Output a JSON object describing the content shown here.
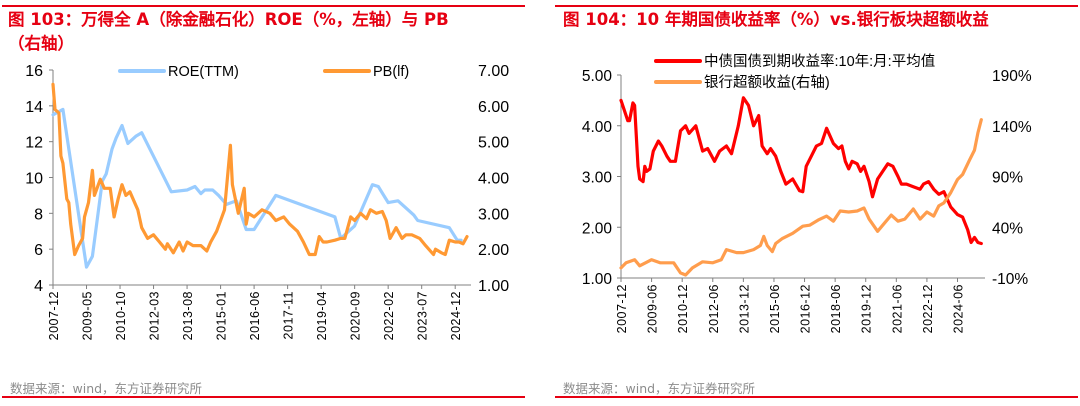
{
  "left": {
    "title": "图 103：万得全 A（除金融石化）ROE（%，左轴）与 PB（右轴）",
    "title_line1": "图 103：万得全 A（除金融石化）ROE（%，左轴）与 PB",
    "title_line2": "（右轴）",
    "source": "数据来源：wind，东方证券研究所"
  },
  "right": {
    "title": "图 104：10 年期国债收益率（%）vs.银行板块超额收益",
    "source": "数据来源：wind，东方证券研究所"
  },
  "colors": {
    "accent": "#e60012",
    "roe": "#99ccff",
    "pb": "#ff9933",
    "yield": "#ff0000",
    "excess": "#ff9d4d"
  },
  "chart_data": [
    {
      "type": "line",
      "title": "图 103：万得全 A（除金融石化）ROE（%，左轴）与 PB（右轴）",
      "x_ticks": [
        "2007-12",
        "2009-05",
        "2010-10",
        "2012-03",
        "2013-08",
        "2015-01",
        "2016-06",
        "2017-11",
        "2019-04",
        "2020-09",
        "2022-02",
        "2023-07",
        "2024-12"
      ],
      "ylim_left": [
        4,
        16
      ],
      "yticks_left": [
        "4",
        "6",
        "8",
        "10",
        "12",
        "14",
        "16"
      ],
      "ylim_right": [
        1,
        7
      ],
      "yticks_right": [
        "1.00",
        "2.00",
        "3.00",
        "4.00",
        "5.00",
        "6.00",
        "7.00"
      ],
      "legend": "top",
      "grid": false,
      "series": [
        {
          "name": "ROE(TTM)",
          "axis": "left",
          "color": "#99ccff",
          "x": [
            "2007-12",
            "2008-05",
            "2009-05",
            "2009-08",
            "2010-01",
            "2010-03",
            "2010-06",
            "2010-08",
            "2010-11",
            "2011-02",
            "2011-06",
            "2011-09",
            "2012-12",
            "2013-08",
            "2013-12",
            "2014-03",
            "2014-05",
            "2014-09",
            "2014-12",
            "2015-04",
            "2015-09",
            "2016-02",
            "2016-06",
            "2017-05",
            "2019-11",
            "2020-02",
            "2020-09",
            "2021-06",
            "2021-09",
            "2022-02",
            "2022-07",
            "2023-03",
            "2023-05",
            "2024-09",
            "2025-01",
            "2025-03"
          ],
          "y": [
            13.5,
            13.8,
            5.0,
            5.6,
            9.8,
            10.2,
            11.6,
            12.2,
            12.9,
            11.9,
            12.3,
            12.5,
            9.2,
            9.3,
            9.5,
            9.1,
            9.3,
            9.3,
            9.0,
            8.5,
            8.7,
            7.1,
            7.1,
            9.0,
            7.8,
            6.6,
            7.3,
            9.6,
            9.5,
            8.6,
            8.7,
            7.9,
            7.6,
            7.2,
            6.5,
            6.5
          ]
        },
        {
          "name": "PB(lf)",
          "axis": "right",
          "color": "#ff9933",
          "x": [
            "2007-12",
            "2008-01",
            "2008-03",
            "2008-04",
            "2008-05",
            "2008-07",
            "2008-08",
            "2008-09",
            "2008-11",
            "2009-01",
            "2009-03",
            "2009-04",
            "2009-06",
            "2009-08",
            "2009-09",
            "2009-12",
            "2010-02",
            "2010-05",
            "2010-07",
            "2010-09",
            "2010-11",
            "2011-01",
            "2011-03",
            "2011-07",
            "2011-09",
            "2011-12",
            "2012-03",
            "2012-06",
            "2012-09",
            "2012-10",
            "2013-01",
            "2013-04",
            "2013-06",
            "2013-08",
            "2013-11",
            "2014-03",
            "2014-06",
            "2014-08",
            "2014-11",
            "2015-01",
            "2015-03",
            "2015-06",
            "2015-07",
            "2015-10",
            "2016-01",
            "2016-02",
            "2016-03",
            "2016-06",
            "2016-10",
            "2017-02",
            "2017-05",
            "2017-09",
            "2017-12",
            "2018-04",
            "2018-07",
            "2018-10",
            "2019-01",
            "2019-03",
            "2019-05",
            "2019-07",
            "2019-11",
            "2020-02",
            "2020-04",
            "2020-07",
            "2020-09",
            "2020-12",
            "2021-03",
            "2021-05",
            "2021-08",
            "2021-11",
            "2022-01",
            "2022-03",
            "2022-06",
            "2022-09",
            "2022-11",
            "2023-02",
            "2023-06",
            "2023-09",
            "2024-01",
            "2024-02",
            "2024-05",
            "2024-07",
            "2024-09",
            "2024-12",
            "2025-02",
            "2025-04",
            "2025-06"
          ],
          "y": [
            6.6,
            5.9,
            5.8,
            4.6,
            4.4,
            3.4,
            3.3,
            2.7,
            1.85,
            2.1,
            2.3,
            2.9,
            3.3,
            4.2,
            3.5,
            3.95,
            3.7,
            3.7,
            2.9,
            3.4,
            3.8,
            3.5,
            3.6,
            3.1,
            2.6,
            2.3,
            2.4,
            2.2,
            2.0,
            2.15,
            1.9,
            2.2,
            1.95,
            2.2,
            2.1,
            2.1,
            1.95,
            2.2,
            2.5,
            2.8,
            3.1,
            4.9,
            3.8,
            3.0,
            3.7,
            2.7,
            3.0,
            2.9,
            3.1,
            3.0,
            2.8,
            2.9,
            2.7,
            2.5,
            2.2,
            1.85,
            1.85,
            2.35,
            2.2,
            2.2,
            2.25,
            2.3,
            2.3,
            2.9,
            2.8,
            3.0,
            2.85,
            3.1,
            3.0,
            3.05,
            2.8,
            2.3,
            2.6,
            2.3,
            2.4,
            2.4,
            2.3,
            2.1,
            1.85,
            2.0,
            1.9,
            1.85,
            2.25,
            2.2,
            2.2,
            2.15,
            2.35
          ]
        }
      ]
    },
    {
      "type": "line",
      "title": "图 104：10 年期国债收益率（%）vs.银行板块超额收益",
      "x_ticks": [
        "2007-12",
        "2009-06",
        "2010-12",
        "2012-06",
        "2013-12",
        "2015-06",
        "2016-12",
        "2018-06",
        "2019-12",
        "2021-06",
        "2022-12",
        "2024-06"
      ],
      "ylim_left": [
        1,
        5
      ],
      "yticks_left": [
        "1.00",
        "2.00",
        "3.00",
        "4.00",
        "5.00"
      ],
      "ylim_right": [
        -10,
        190
      ],
      "yticks_right": [
        "-10%",
        "40%",
        "90%",
        "140%",
        "190%"
      ],
      "legend": "top",
      "grid": false,
      "series": [
        {
          "name": "中债国债到期收益率:10年:月:平均值",
          "axis": "left",
          "color": "#ff0000",
          "x": [
            "2007-12",
            "2008-02",
            "2008-04",
            "2008-05",
            "2008-07",
            "2008-08",
            "2008-10",
            "2008-11",
            "2009-01",
            "2009-02",
            "2009-03",
            "2009-05",
            "2009-07",
            "2009-10",
            "2009-12",
            "2010-03",
            "2010-05",
            "2010-08",
            "2010-11",
            "2011-02",
            "2011-04",
            "2011-08",
            "2011-12",
            "2012-03",
            "2012-07",
            "2012-10",
            "2013-02",
            "2013-05",
            "2013-09",
            "2013-12",
            "2014-03",
            "2014-06",
            "2014-09",
            "2014-11",
            "2015-02",
            "2015-04",
            "2015-07",
            "2015-10",
            "2016-01",
            "2016-05",
            "2016-09",
            "2016-11",
            "2017-01",
            "2017-04",
            "2017-07",
            "2017-10",
            "2018-01",
            "2018-05",
            "2018-08",
            "2018-10",
            "2018-12",
            "2019-02",
            "2019-04",
            "2019-07",
            "2019-09",
            "2019-11",
            "2020-02",
            "2020-04",
            "2020-07",
            "2020-10",
            "2021-01",
            "2021-04",
            "2021-07",
            "2021-09",
            "2021-12",
            "2022-04",
            "2022-08",
            "2022-10",
            "2023-01",
            "2023-04",
            "2023-07",
            "2023-10",
            "2024-02",
            "2024-06",
            "2024-09",
            "2024-12",
            "2025-02",
            "2025-04",
            "2025-06",
            "2025-08"
          ],
          "y": [
            4.5,
            4.3,
            4.1,
            4.1,
            4.45,
            4.4,
            3.2,
            2.95,
            2.9,
            3.2,
            3.1,
            3.15,
            3.5,
            3.7,
            3.6,
            3.4,
            3.3,
            3.3,
            3.9,
            4.0,
            3.85,
            4.0,
            3.5,
            3.55,
            3.3,
            3.5,
            3.6,
            3.45,
            4.0,
            4.55,
            4.4,
            4.0,
            4.2,
            3.6,
            3.45,
            3.55,
            3.4,
            3.1,
            2.85,
            2.95,
            2.72,
            2.7,
            3.2,
            3.4,
            3.6,
            3.65,
            3.95,
            3.65,
            3.55,
            3.6,
            3.3,
            3.15,
            3.3,
            3.25,
            3.1,
            3.2,
            2.9,
            2.6,
            2.95,
            3.1,
            3.25,
            3.2,
            3.0,
            2.85,
            2.85,
            2.8,
            2.75,
            2.85,
            2.9,
            2.75,
            2.65,
            2.7,
            2.4,
            2.25,
            2.2,
            1.95,
            1.7,
            1.8,
            1.7,
            1.68
          ]
        },
        {
          "name": "银行超额收益(右轴)",
          "axis": "right",
          "color": "#ff9d4d",
          "x": [
            "2007-12",
            "2008-03",
            "2008-08",
            "2008-11",
            "2009-06",
            "2009-11",
            "2010-07",
            "2010-11",
            "2011-02",
            "2011-06",
            "2011-12",
            "2012-06",
            "2012-11",
            "2013-02",
            "2013-08",
            "2013-12",
            "2014-06",
            "2014-10",
            "2014-12",
            "2015-02",
            "2015-05",
            "2015-07",
            "2015-11",
            "2016-05",
            "2016-11",
            "2017-03",
            "2017-08",
            "2018-01",
            "2018-05",
            "2018-09",
            "2019-02",
            "2019-07",
            "2019-11",
            "2020-02",
            "2020-07",
            "2020-11",
            "2021-03",
            "2021-07",
            "2021-11",
            "2022-04",
            "2022-08",
            "2022-12",
            "2023-04",
            "2023-07",
            "2023-10",
            "2024-02",
            "2024-06",
            "2024-09",
            "2025-01",
            "2025-04",
            "2025-06",
            "2025-08"
          ],
          "y": [
            0,
            5,
            8,
            2,
            8,
            5,
            5,
            -5,
            -7,
            0,
            6,
            5,
            8,
            18,
            15,
            15,
            18,
            22,
            31,
            22,
            16,
            24,
            29,
            34,
            41,
            42,
            47,
            51,
            46,
            56,
            55,
            56,
            59,
            48,
            36,
            44,
            52,
            46,
            48,
            58,
            48,
            55,
            51,
            61,
            64,
            74,
            87,
            92,
            106,
            116,
            133,
            146
          ]
        }
      ]
    }
  ]
}
